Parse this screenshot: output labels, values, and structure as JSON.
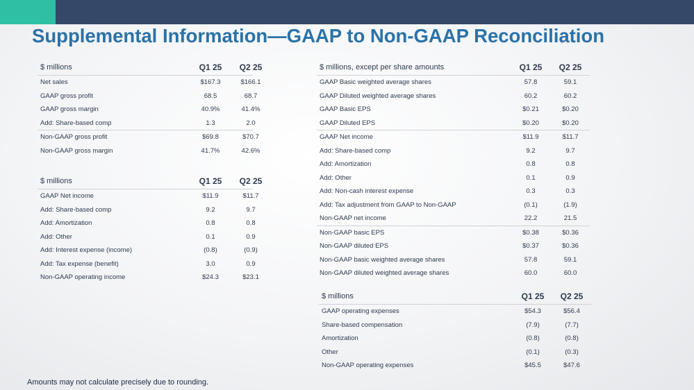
{
  "title": "Supplemental Information—GAAP to Non-GAAP Reconciliation",
  "footnote": "Amounts may not calculate precisely due to rounding.",
  "tables": {
    "gross": {
      "header": {
        "label": "$ millions",
        "c1": "Q1 25",
        "c2": "Q2 25"
      },
      "rows": [
        {
          "label": "Net sales",
          "c1": "$167.3",
          "c2": "$166.1"
        },
        {
          "label": "GAAP gross profit",
          "c1": "68.5",
          "c2": "68.7"
        },
        {
          "label": "GAAP gross margin",
          "c1": "40.9%",
          "c2": "41.4%"
        },
        {
          "label": "Add: Share-based comp",
          "c1": "1.3",
          "c2": "2.0"
        },
        {
          "label": "Non-GAAP gross profit",
          "c1": "$69.8",
          "c2": "$70.7"
        },
        {
          "label": "Non-GAAP gross margin",
          "c1": "41.7%",
          "c2": "42.6%"
        }
      ]
    },
    "opinc": {
      "header": {
        "label": "$ millions",
        "c1": "Q1 25",
        "c2": "Q2 25"
      },
      "rows": [
        {
          "label": "GAAP Net income",
          "c1": "$11.9",
          "c2": "$11.7"
        },
        {
          "label": "Add: Share-based comp",
          "c1": "9.2",
          "c2": "9.7"
        },
        {
          "label": "Add: Amortization",
          "c1": "0.8",
          "c2": "0.8"
        },
        {
          "label": "Add: Other",
          "c1": "0.1",
          "c2": "0.9"
        },
        {
          "label": "Add: Interest expense (income)",
          "c1": "(0.8)",
          "c2": "(0.9)"
        },
        {
          "label": "Add: Tax expense (benefit)",
          "c1": "3.0",
          "c2": "0.9"
        },
        {
          "label": "Non-GAAP operating income",
          "c1": "$24.3",
          "c2": "$23.1"
        }
      ]
    },
    "eps": {
      "header": {
        "label": "$ millions, except per share amounts",
        "c1": "Q1 25",
        "c2": "Q2 25"
      },
      "rows": [
        {
          "label": "GAAP Basic weighted average shares",
          "c1": "57.8",
          "c2": "59.1"
        },
        {
          "label": "GAAP Diluted weighted average shares",
          "c1": "60.2",
          "c2": "60.2"
        },
        {
          "label": "GAAP Basic EPS",
          "c1": "$0.21",
          "c2": "$0.20"
        },
        {
          "label": "GAAP Diluted EPS",
          "c1": "$0.20",
          "c2": "$0.20"
        },
        {
          "label": "GAAP Net income",
          "c1": "$11.9",
          "c2": "$11.7"
        },
        {
          "label": "Add: Share-based comp",
          "c1": "9.2",
          "c2": "9.7"
        },
        {
          "label": "Add: Amortization",
          "c1": "0.8",
          "c2": "0.8"
        },
        {
          "label": "Add: Other",
          "c1": "0.1",
          "c2": "0.9"
        },
        {
          "label": "Add: Non-cash interest expense",
          "c1": "0.3",
          "c2": "0.3"
        },
        {
          "label": "Add: Tax adjustment from GAAP to Non-GAAP",
          "c1": "(0.1)",
          "c2": "(1.9)"
        },
        {
          "label": "Non-GAAP net income",
          "c1": "22.2",
          "c2": "21.5"
        },
        {
          "label": "Non-GAAP basic EPS",
          "c1": "$0.38",
          "c2": "$0.36"
        },
        {
          "label": "Non-GAAP diluted EPS",
          "c1": "$0.37",
          "c2": "$0.36"
        },
        {
          "label": "Non-GAAP basic weighted average shares",
          "c1": "57.8",
          "c2": "59.1"
        },
        {
          "label": "Non-GAAP diluted weighted average shares",
          "c1": "60.0",
          "c2": "60.0"
        }
      ]
    },
    "opex": {
      "header": {
        "label": "$ millions",
        "c1": "Q1 25",
        "c2": "Q2 25"
      },
      "rows": [
        {
          "label": "GAAP operating expenses",
          "c1": "$54.3",
          "c2": "$56.4"
        },
        {
          "label": "Share-based compensation",
          "c1": "(7.9)",
          "c2": "(7.7)"
        },
        {
          "label": "Amortization",
          "c1": "(0.8)",
          "c2": "(0.8)"
        },
        {
          "label": "Other",
          "c1": "(0.1)",
          "c2": "(0.3)"
        },
        {
          "label": "Non-GAAP operating expenses",
          "c1": "$45.5",
          "c2": "$47.6"
        }
      ]
    }
  }
}
